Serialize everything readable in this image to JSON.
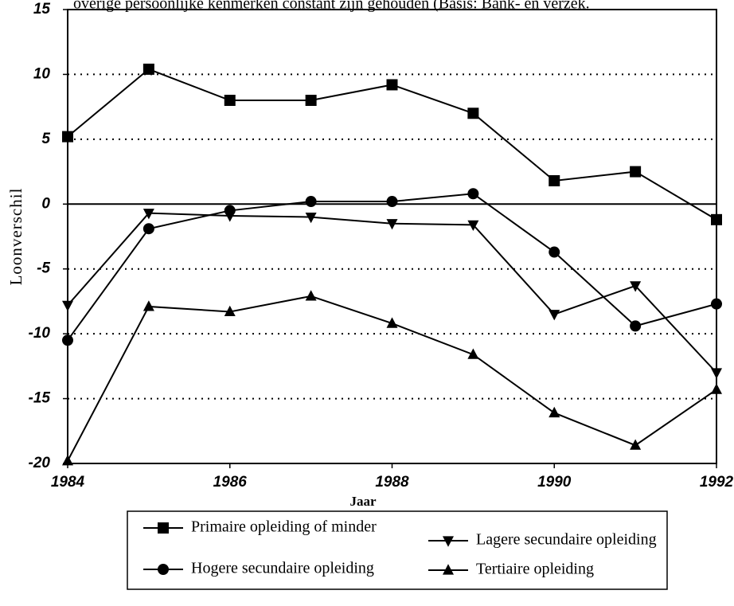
{
  "chart_data": {
    "type": "line",
    "title": "overige persoonlijke kenmerken constant zijn gehouden (Basis: Bank- en verzek.",
    "xlabel": "Jaar",
    "ylabel": "Loonverschil",
    "x": [
      1984,
      1985,
      1986,
      1987,
      1988,
      1989,
      1990,
      1991,
      1992
    ],
    "xlim": [
      1984,
      1992
    ],
    "xticks": [
      1984,
      1986,
      1988,
      1990,
      1992
    ],
    "ylim": [
      -20,
      15
    ],
    "yticks": [
      -20,
      -15,
      -10,
      -5,
      0,
      5,
      10,
      15
    ],
    "grid": true,
    "legend": "bottom",
    "series": [
      {
        "name": "Primaire opleiding of minder",
        "color": "#000000",
        "marker": "square",
        "values": [
          5.2,
          10.4,
          8.0,
          8.0,
          9.2,
          7.0,
          1.8,
          2.5,
          -1.2
        ]
      },
      {
        "name": "Lagere secundaire opleiding",
        "color": "#000000",
        "marker": "triangle-down",
        "values": [
          -7.8,
          -0.7,
          -0.9,
          -1.0,
          -1.5,
          -1.6,
          -8.5,
          -6.3,
          -13.0
        ]
      },
      {
        "name": "Hogere secundaire opleiding",
        "color": "#000000",
        "marker": "circle",
        "values": [
          -10.5,
          -1.9,
          -0.5,
          0.2,
          0.2,
          0.8,
          -3.7,
          -9.4,
          -7.7
        ]
      },
      {
        "name": "Tertiaire opleiding",
        "color": "#000000",
        "marker": "triangle-up",
        "values": [
          -19.8,
          -7.9,
          -8.3,
          -7.1,
          -9.2,
          -11.6,
          -16.1,
          -18.6,
          -14.3
        ]
      }
    ]
  }
}
